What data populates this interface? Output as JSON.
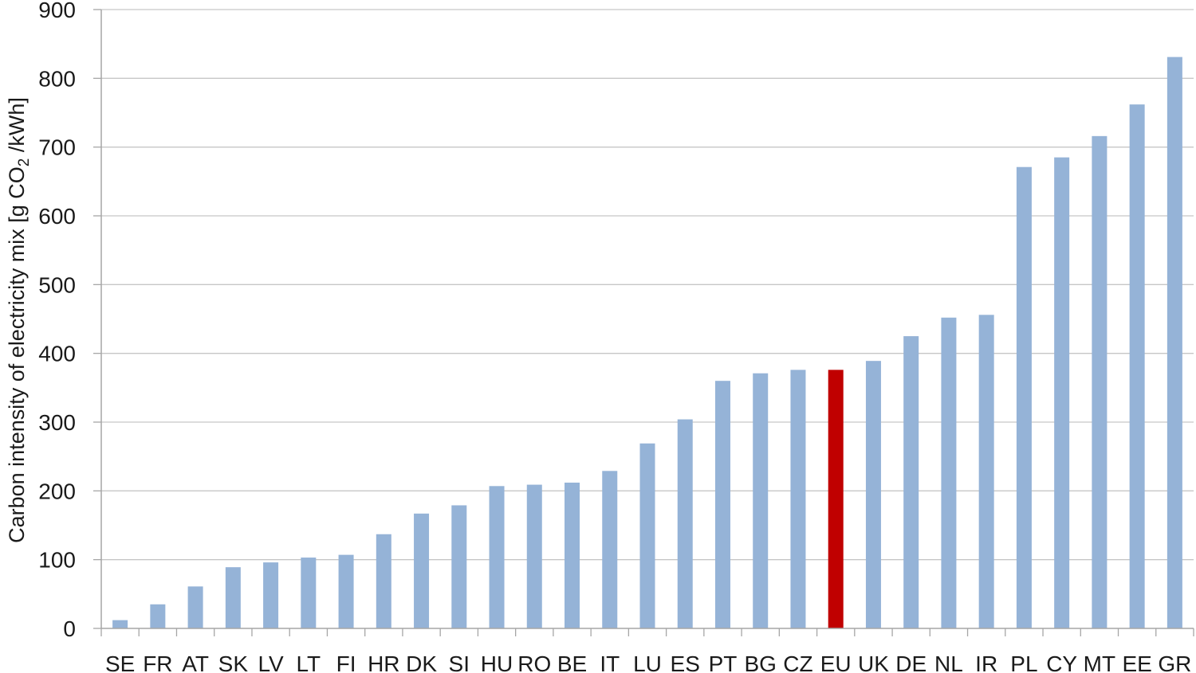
{
  "chart_data": {
    "type": "bar",
    "ylabel_prefix": "Carbon intensity of electricity mix  [g CO",
    "ylabel_subscript": "2",
    "ylabel_suffix": " /kWh]",
    "xlabel": "",
    "ylim": [
      0,
      900
    ],
    "yticks": [
      0,
      100,
      200,
      300,
      400,
      500,
      600,
      700,
      800,
      900
    ],
    "grid": true,
    "legend": "none",
    "categories": [
      "SE",
      "FR",
      "AT",
      "SK",
      "LV",
      "LT",
      "FI",
      "HR",
      "DK",
      "SI",
      "HU",
      "RO",
      "BE",
      "IT",
      "LU",
      "ES",
      "PT",
      "BG",
      "CZ",
      "EU",
      "UK",
      "DE",
      "NL",
      "IR",
      "PL",
      "CY",
      "MT",
      "EE",
      "GR"
    ],
    "values": [
      12,
      35,
      61,
      89,
      96,
      103,
      107,
      137,
      167,
      179,
      207,
      209,
      212,
      229,
      269,
      304,
      360,
      371,
      376,
      376,
      389,
      425,
      452,
      456,
      671,
      685,
      716,
      762,
      831
    ],
    "colors": {
      "default": "#95b3d7",
      "highlight": "#c00000",
      "highlight_category": "EU",
      "grid": "#c6c6c6",
      "axis": "#a6a6a6"
    }
  }
}
